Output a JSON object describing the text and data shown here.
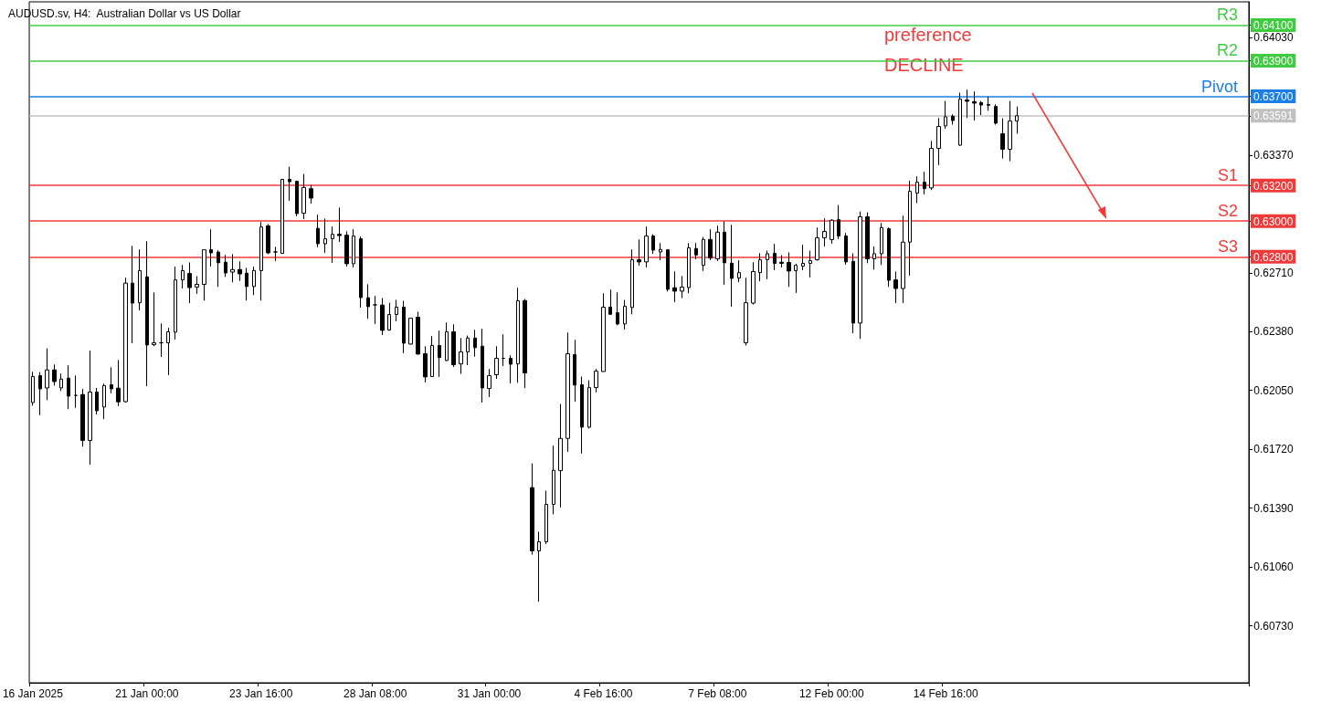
{
  "chart_data": {
    "type": "candlestick",
    "title": "AUDUSD.sv, H4:  Australian Dollar vs US Dollar",
    "annotations": [
      "preference",
      "DECLINE"
    ],
    "categories": [
      "16 Jan 2025",
      null,
      null,
      null,
      null,
      null,
      null,
      null,
      null,
      null,
      null,
      null,
      null,
      null,
      null,
      null,
      "21 Jan 00:00",
      null,
      null,
      null,
      null,
      null,
      null,
      null,
      null,
      null,
      null,
      null,
      null,
      null,
      null,
      null,
      "23 Jan 16:00",
      null,
      null,
      null,
      null,
      null,
      null,
      null,
      null,
      null,
      null,
      null,
      null,
      null,
      null,
      null,
      "28 Jan 08:00",
      null,
      null,
      null,
      null,
      null,
      null,
      null,
      null,
      null,
      null,
      null,
      null,
      null,
      null,
      null,
      "31 Jan 00:00",
      null,
      null,
      null,
      null,
      null,
      null,
      null,
      null,
      null,
      null,
      null,
      null,
      null,
      null,
      null,
      "4 Feb 16:00",
      null,
      null,
      null,
      null,
      null,
      null,
      null,
      null,
      null,
      null,
      null,
      null,
      null,
      null,
      null,
      "7 Feb 08:00",
      null,
      null,
      null,
      null,
      null,
      null,
      null,
      null,
      null,
      null,
      null,
      null,
      null,
      null,
      null,
      "12 Feb 00:00",
      null,
      null,
      null,
      null,
      null,
      null,
      null,
      null,
      null,
      null,
      null,
      null,
      null,
      null,
      null,
      "14 Feb 16:00",
      null,
      null,
      null,
      null,
      null,
      null,
      null,
      null,
      null,
      null,
      null,
      null,
      null,
      null,
      null,
      null,
      null,
      null,
      null,
      null,
      null,
      null,
      null,
      null,
      null,
      null,
      null,
      null,
      null,
      null,
      null,
      null,
      null,
      null,
      null,
      null,
      null,
      null,
      null,
      null,
      null,
      null
    ],
    "ohlc": [
      [
        0.61982,
        0.62155,
        0.61965,
        0.62128
      ],
      [
        0.62133,
        0.62153,
        0.61911,
        0.62059
      ],
      [
        0.62064,
        0.62286,
        0.61996,
        0.62165
      ],
      [
        0.62165,
        0.62196,
        0.62077,
        0.621
      ],
      [
        0.62064,
        0.62145,
        0.62047,
        0.62114
      ],
      [
        0.62119,
        0.62191,
        0.61945,
        0.62018
      ],
      [
        0.62022,
        0.62134,
        0.61952,
        0.62022
      ],
      [
        0.62027,
        0.62059,
        0.61735,
        0.61769
      ],
      [
        0.61769,
        0.62273,
        0.61633,
        0.62041
      ],
      [
        0.62041,
        0.62064,
        0.61916,
        0.61936
      ],
      [
        0.61957,
        0.62088,
        0.61889,
        0.62077
      ],
      [
        0.62082,
        0.6218,
        0.62034,
        0.62059
      ],
      [
        0.62063,
        0.62221,
        0.61962,
        0.61986
      ],
      [
        0.61987,
        0.62682,
        0.61982,
        0.62652
      ],
      [
        0.62652,
        0.62861,
        0.62315,
        0.6254
      ],
      [
        0.62542,
        0.62841,
        0.62499,
        0.62722
      ],
      [
        0.62687,
        0.62887,
        0.62074,
        0.62305
      ],
      [
        0.62307,
        0.626,
        0.62298,
        0.62317
      ],
      [
        0.62317,
        0.62426,
        0.62238,
        0.62317
      ],
      [
        0.62317,
        0.62401,
        0.62136,
        0.62379
      ],
      [
        0.62377,
        0.62744,
        0.62336,
        0.6267
      ],
      [
        0.6267,
        0.62754,
        0.62622,
        0.62722
      ],
      [
        0.62706,
        0.62768,
        0.6254,
        0.62627
      ],
      [
        0.6263,
        0.62691,
        0.62592,
        0.62645
      ],
      [
        0.62645,
        0.62839,
        0.62554,
        0.62839
      ],
      [
        0.62839,
        0.62954,
        0.62745,
        0.62822
      ],
      [
        0.62826,
        0.62836,
        0.62631,
        0.62766
      ],
      [
        0.62769,
        0.6281,
        0.62687,
        0.62709
      ],
      [
        0.62714,
        0.62815,
        0.62657,
        0.62728
      ],
      [
        0.62728,
        0.62774,
        0.62665,
        0.62704
      ],
      [
        0.62708,
        0.62737,
        0.62554,
        0.62633
      ],
      [
        0.62633,
        0.62744,
        0.62585,
        0.62723
      ],
      [
        0.62722,
        0.62995,
        0.62554,
        0.62967
      ],
      [
        0.62973,
        0.62983,
        0.62815,
        0.62822
      ],
      [
        0.62827,
        0.62856,
        0.62776,
        0.62827
      ],
      [
        0.62819,
        0.63234,
        0.62817,
        0.63234
      ],
      [
        0.63234,
        0.63305,
        0.63114,
        0.63221
      ],
      [
        0.63223,
        0.63227,
        0.63027,
        0.63042
      ],
      [
        0.63044,
        0.63264,
        0.63011,
        0.63189
      ],
      [
        0.63182,
        0.63203,
        0.63098,
        0.63129
      ],
      [
        0.62959,
        0.63036,
        0.62853,
        0.62873
      ],
      [
        0.62873,
        0.63014,
        0.62822,
        0.62901
      ],
      [
        0.62901,
        0.62969,
        0.62766,
        0.62926
      ],
      [
        0.62926,
        0.63076,
        0.62883,
        0.62919
      ],
      [
        0.62921,
        0.62943,
        0.62745,
        0.62761
      ],
      [
        0.62761,
        0.62954,
        0.6274,
        0.62916
      ],
      [
        0.62901,
        0.62913,
        0.62515,
        0.62571
      ],
      [
        0.6257,
        0.62646,
        0.62452,
        0.6252
      ],
      [
        0.6253,
        0.6258,
        0.62423,
        0.6253
      ],
      [
        0.62529,
        0.62568,
        0.62361,
        0.62387
      ],
      [
        0.62389,
        0.62542,
        0.62385,
        0.62476
      ],
      [
        0.62476,
        0.62558,
        0.62438,
        0.62517
      ],
      [
        0.62517,
        0.62553,
        0.62259,
        0.62315
      ],
      [
        0.6231,
        0.62455,
        0.62307,
        0.62455
      ],
      [
        0.62461,
        0.62491,
        0.62251,
        0.62254
      ],
      [
        0.62256,
        0.62298,
        0.62095,
        0.62126
      ],
      [
        0.62128,
        0.62355,
        0.62126,
        0.62302
      ],
      [
        0.62302,
        0.62385,
        0.62126,
        0.62235
      ],
      [
        0.62218,
        0.62431,
        0.62215,
        0.62379
      ],
      [
        0.62379,
        0.62421,
        0.62182,
        0.62194
      ],
      [
        0.62199,
        0.62344,
        0.62143,
        0.62266
      ],
      [
        0.62266,
        0.62358,
        0.62192,
        0.62344
      ],
      [
        0.62344,
        0.6239,
        0.6224,
        0.6229
      ],
      [
        0.62298,
        0.62396,
        0.61982,
        0.62064
      ],
      [
        0.62061,
        0.6217,
        0.62013,
        0.62133
      ],
      [
        0.62138,
        0.62298,
        0.62115,
        0.6223
      ],
      [
        0.6223,
        0.62365,
        0.62187,
        0.6223
      ],
      [
        0.6223,
        0.62247,
        0.6209,
        0.62197
      ],
      [
        0.62199,
        0.62626,
        0.62093,
        0.62553
      ],
      [
        0.62554,
        0.62563,
        0.62063,
        0.62148
      ],
      [
        0.61505,
        0.61641,
        0.61129,
        0.6115
      ],
      [
        0.6115,
        0.61257,
        0.60865,
        0.61201
      ],
      [
        0.61201,
        0.61488,
        0.61189,
        0.61411
      ],
      [
        0.61411,
        0.6174,
        0.61355,
        0.61602
      ],
      [
        0.616,
        0.61974,
        0.61394,
        0.61781
      ],
      [
        0.61781,
        0.62374,
        0.61706,
        0.62256
      ],
      [
        0.62251,
        0.62333,
        0.61987,
        0.6208
      ],
      [
        0.62082,
        0.62128,
        0.61696,
        0.61844
      ],
      [
        0.61844,
        0.62107,
        0.61837,
        0.62066
      ],
      [
        0.62066,
        0.6217,
        0.62039,
        0.62158
      ],
      [
        0.62156,
        0.62595,
        0.62155,
        0.62517
      ],
      [
        0.62517,
        0.62616,
        0.62477,
        0.62477
      ],
      [
        0.62486,
        0.626,
        0.62416,
        0.62423
      ],
      [
        0.62423,
        0.62558,
        0.62392,
        0.62522
      ],
      [
        0.62515,
        0.62841,
        0.62477,
        0.62783
      ],
      [
        0.62783,
        0.62897,
        0.6275,
        0.62771
      ],
      [
        0.62771,
        0.62969,
        0.6274,
        0.62916
      ],
      [
        0.62916,
        0.62926,
        0.62817,
        0.62837
      ],
      [
        0.62827,
        0.62877,
        0.62781,
        0.62841
      ],
      [
        0.62839,
        0.62841,
        0.62605,
        0.62617
      ],
      [
        0.62626,
        0.62718,
        0.62546,
        0.62607
      ],
      [
        0.62607,
        0.62692,
        0.62568,
        0.6263
      ],
      [
        0.62627,
        0.62877,
        0.62595,
        0.6285
      ],
      [
        0.62846,
        0.62877,
        0.62785,
        0.6281
      ],
      [
        0.62752,
        0.62911,
        0.6272,
        0.62897
      ],
      [
        0.62897,
        0.62954,
        0.62781,
        0.62793
      ],
      [
        0.62788,
        0.62974,
        0.62776,
        0.62938
      ],
      [
        0.62938,
        0.62998,
        0.62643,
        0.62766
      ],
      [
        0.62764,
        0.62979,
        0.6252,
        0.62679
      ],
      [
        0.62681,
        0.6278,
        0.62657,
        0.62711
      ],
      [
        0.62317,
        0.62682,
        0.62302,
        0.62542
      ],
      [
        0.6254,
        0.62769,
        0.62532,
        0.62717
      ],
      [
        0.62711,
        0.6282,
        0.62662,
        0.62783
      ],
      [
        0.62783,
        0.62834,
        0.62674,
        0.62817
      ],
      [
        0.62819,
        0.62872,
        0.62725,
        0.62763
      ],
      [
        0.62769,
        0.62809,
        0.6274,
        0.62763
      ],
      [
        0.62768,
        0.62824,
        0.62631,
        0.6272
      ],
      [
        0.62722,
        0.62761,
        0.62597,
        0.62752
      ],
      [
        0.62747,
        0.62867,
        0.62725,
        0.62763
      ],
      [
        0.62763,
        0.62834,
        0.62684,
        0.62778
      ],
      [
        0.62783,
        0.62964,
        0.62778,
        0.62906
      ],
      [
        0.62906,
        0.63015,
        0.62858,
        0.62942
      ],
      [
        0.62896,
        0.6301,
        0.62873,
        0.63005
      ],
      [
        0.63008,
        0.6309,
        0.62899,
        0.62916
      ],
      [
        0.62916,
        0.62933,
        0.62755,
        0.62771
      ],
      [
        0.62774,
        0.62819,
        0.62371,
        0.62428
      ],
      [
        0.62428,
        0.63054,
        0.62339,
        0.63024
      ],
      [
        0.63024,
        0.63049,
        0.62764,
        0.62788
      ],
      [
        0.62788,
        0.62858,
        0.62728,
        0.62817
      ],
      [
        0.62817,
        0.62989,
        0.62754,
        0.62964
      ],
      [
        0.62957,
        0.62964,
        0.62631,
        0.62668
      ],
      [
        0.6267,
        0.62717,
        0.6254,
        0.62622
      ],
      [
        0.62622,
        0.6303,
        0.6254,
        0.62882
      ],
      [
        0.62882,
        0.63227,
        0.62694,
        0.63167
      ],
      [
        0.63157,
        0.63251,
        0.63101,
        0.63218
      ],
      [
        0.63218,
        0.63276,
        0.6315,
        0.63182
      ],
      [
        0.63186,
        0.6345,
        0.63174,
        0.63408
      ],
      [
        0.63408,
        0.63578,
        0.63314,
        0.63531
      ],
      [
        0.63534,
        0.63674,
        0.63518,
        0.63585
      ],
      [
        0.63588,
        0.63599,
        0.63541,
        0.63564
      ],
      [
        0.63426,
        0.6372,
        0.63422,
        0.63684
      ],
      [
        0.63679,
        0.63737,
        0.63578,
        0.63672
      ],
      [
        0.6367,
        0.63727,
        0.63564,
        0.63662
      ],
      [
        0.63665,
        0.63674,
        0.63595,
        0.63651
      ],
      [
        0.63654,
        0.63698,
        0.63619,
        0.6365
      ],
      [
        0.63643,
        0.63655,
        0.63541,
        0.63549
      ],
      [
        0.6349,
        0.63577,
        0.63351,
        0.63403
      ],
      [
        0.63403,
        0.63674,
        0.63336,
        0.63561
      ],
      [
        0.63561,
        0.63643,
        0.6349,
        0.63591
      ],
      null,
      null,
      null,
      null,
      null,
      null,
      null,
      null,
      null,
      null,
      null,
      null,
      null,
      null,
      null,
      null,
      null,
      null,
      null,
      null,
      null,
      null,
      null,
      null,
      null,
      null,
      null,
      null,
      null,
      null,
      null,
      null
    ],
    "ylim": [
      0.6041,
      0.6423
    ],
    "yticks": [
      {
        "value": 0.6073,
        "label": "0.60730"
      },
      {
        "value": 0.6106,
        "label": "0.61060"
      },
      {
        "value": 0.6139,
        "label": "0.61390"
      },
      {
        "value": 0.6172,
        "label": "0.61720"
      },
      {
        "value": 0.6205,
        "label": "0.62050"
      },
      {
        "value": 0.6238,
        "label": "0.62380"
      },
      {
        "value": 0.6271,
        "label": "0.62710"
      },
      {
        "value": 0.628,
        "label": "0.62800"
      },
      {
        "value": 0.63,
        "label": "0.63000"
      },
      {
        "value": 0.632,
        "label": "0.63200"
      },
      {
        "value": 0.6337,
        "label": "0.63370"
      },
      {
        "value": 0.63591,
        "label": "0.63591"
      },
      {
        "value": 0.637,
        "label": "0.63700"
      },
      {
        "value": 0.639,
        "label": "0.63900"
      },
      {
        "value": 0.6403,
        "label": "0.64030"
      },
      {
        "value": 0.641,
        "label": "0.64100"
      }
    ],
    "ref_lines": [
      {
        "axis": "y",
        "value": 0.641,
        "label": "R3",
        "color": "#40cc40"
      },
      {
        "axis": "y",
        "value": 0.639,
        "label": "R2",
        "color": "#40cc40"
      },
      {
        "axis": "y",
        "value": 0.637,
        "label": "Pivot",
        "color": "#1a7ee8"
      },
      {
        "axis": "y",
        "value": 0.63591,
        "color": "#c0c0c0"
      },
      {
        "axis": "y",
        "value": 0.632,
        "label": "S1",
        "color": "#f03a3a"
      },
      {
        "axis": "y",
        "value": 0.63,
        "label": "S2",
        "color": "#f03a3a"
      },
      {
        "axis": "y",
        "value": 0.628,
        "label": "S3",
        "color": "#f03a3a"
      }
    ],
    "grid": false
  }
}
